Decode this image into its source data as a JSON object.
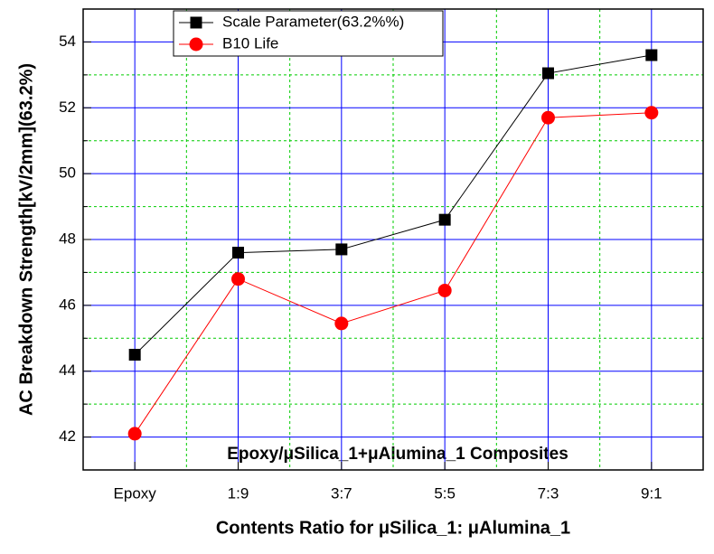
{
  "chart_data": {
    "type": "line",
    "annotation": "Epoxy/μSilica_1+μAlumina_1 Composites",
    "x_label": "Contents Ratio for μSilica_1: μAlumina_1",
    "y_label": "AC Breakdown Strength[kV/2mm](63.2%)",
    "categories": [
      "Epoxy",
      "1:9",
      "3:7",
      "5:5",
      "7:3",
      "9:1"
    ],
    "series": [
      {
        "name": "Scale Parameter(63.2%%)",
        "color": "#000000",
        "marker": "square",
        "values": [
          44.5,
          47.6,
          47.7,
          48.6,
          53.05,
          53.6
        ]
      },
      {
        "name": "B10 Life",
        "color": "#ff0000",
        "marker": "circle",
        "values": [
          42.1,
          46.8,
          45.45,
          46.45,
          51.7,
          51.85
        ]
      }
    ],
    "ylim": [
      41,
      55
    ],
    "yticks": [
      42,
      44,
      46,
      48,
      50,
      52,
      54
    ],
    "minor_yticks": [
      43,
      45,
      47,
      49,
      51,
      53
    ],
    "grid": true
  }
}
